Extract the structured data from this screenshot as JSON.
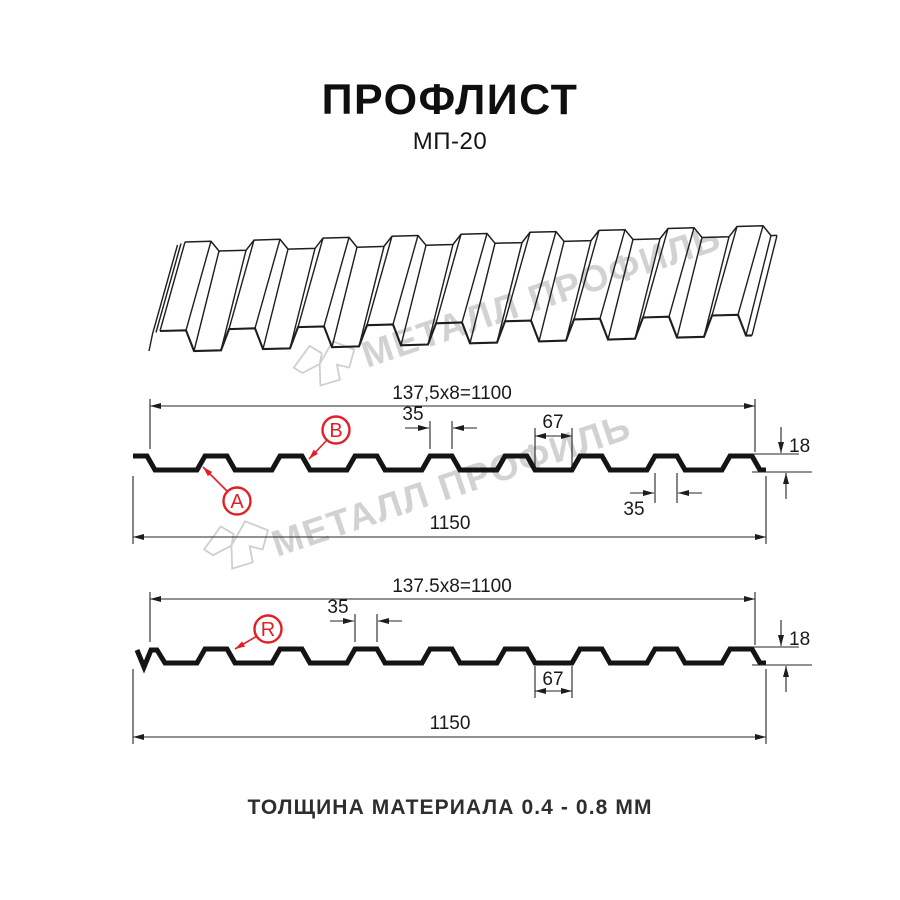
{
  "header": {
    "title": "ПРОФЛИСТ",
    "subtitle": "МП-20"
  },
  "watermark": {
    "text": "МЕТАЛЛ ПРОФИЛЬ"
  },
  "profile_top": {
    "pitch_formula": "137,5x8=1100",
    "rib_width_top": "35",
    "valley_width": "67",
    "rib_width_bottom": "35",
    "height": "18",
    "total_width": "1150",
    "label_a": "A",
    "label_b": "B"
  },
  "profile_bottom": {
    "pitch_formula": "137.5x8=1100",
    "rib_width_top": "35",
    "valley_width": "67",
    "height": "18",
    "total_width": "1150",
    "label_r": "R"
  },
  "footer": {
    "material_thickness": "ТОЛЩИНА МАТЕРИАЛА 0.4 - 0.8 ММ"
  },
  "colors": {
    "line": "#1e1e1e",
    "dim": "#242424",
    "red": "#e31e24",
    "watermark": "#d2d2d2"
  }
}
